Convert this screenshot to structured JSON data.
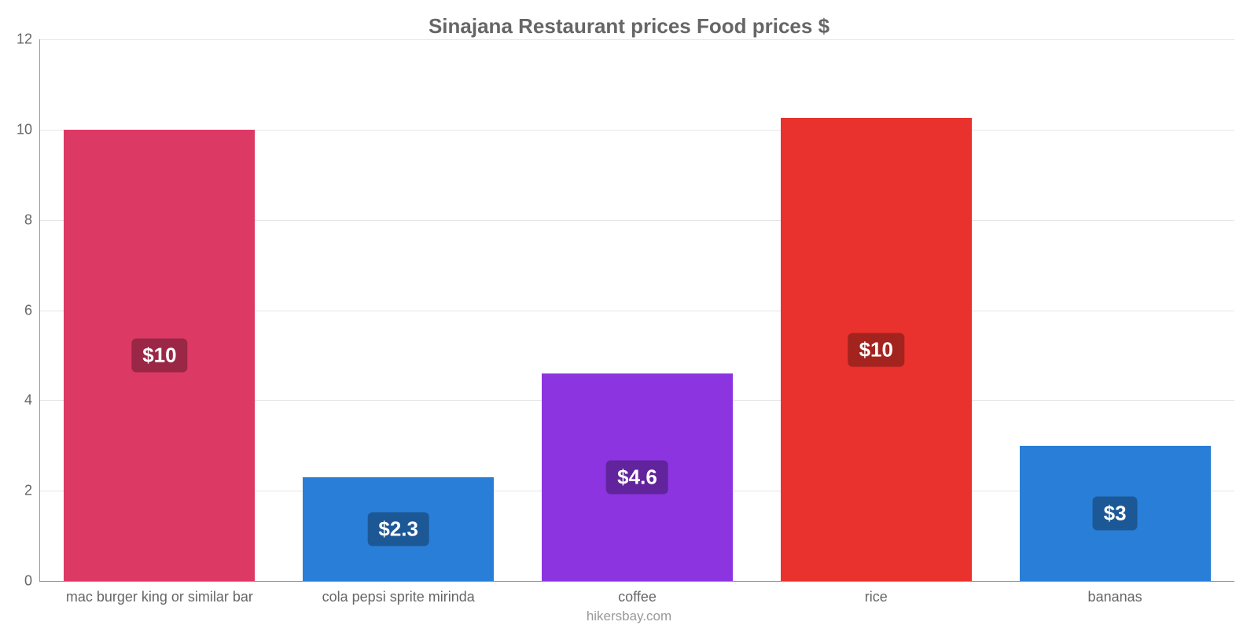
{
  "chart": {
    "type": "bar",
    "title": "Sinajana Restaurant prices Food prices $",
    "title_fontsize": 26,
    "title_color": "#666666",
    "attribution": "hikersbay.com",
    "attribution_color": "#999999",
    "background_color": "#ffffff",
    "axis_color": "#999999",
    "grid_color": "#e6e6e6",
    "axis_label_color": "#666666",
    "axis_label_fontsize": 18,
    "ylim": [
      0,
      12
    ],
    "ytick_step": 2,
    "yticks": [
      {
        "v": 0,
        "label": "0"
      },
      {
        "v": 2,
        "label": "2"
      },
      {
        "v": 4,
        "label": "4"
      },
      {
        "v": 6,
        "label": "6"
      },
      {
        "v": 8,
        "label": "8"
      },
      {
        "v": 10,
        "label": "10"
      },
      {
        "v": 12,
        "label": "12"
      }
    ],
    "bar_width_pct": 80,
    "bar_label_fontsize": 26,
    "bar_label_text_color": "#ffffff",
    "categories": [
      {
        "name": "mac burger king or similar bar",
        "value": 10.0,
        "display": "$10",
        "color": "#dd3965",
        "label_bg": "#9a2746"
      },
      {
        "name": "cola pepsi sprite mirinda",
        "value": 2.3,
        "display": "$2.3",
        "color": "#297ed7",
        "label_bg": "#1c5896"
      },
      {
        "name": "coffee",
        "value": 4.6,
        "display": "$4.6",
        "color": "#8c34e0",
        "label_bg": "#62249c"
      },
      {
        "name": "rice",
        "value": 10.25,
        "display": "$10",
        "color": "#e9322d",
        "label_bg": "#a3231f"
      },
      {
        "name": "bananas",
        "value": 3.0,
        "display": "$3",
        "color": "#297ed7",
        "label_bg": "#1c5896"
      }
    ]
  }
}
